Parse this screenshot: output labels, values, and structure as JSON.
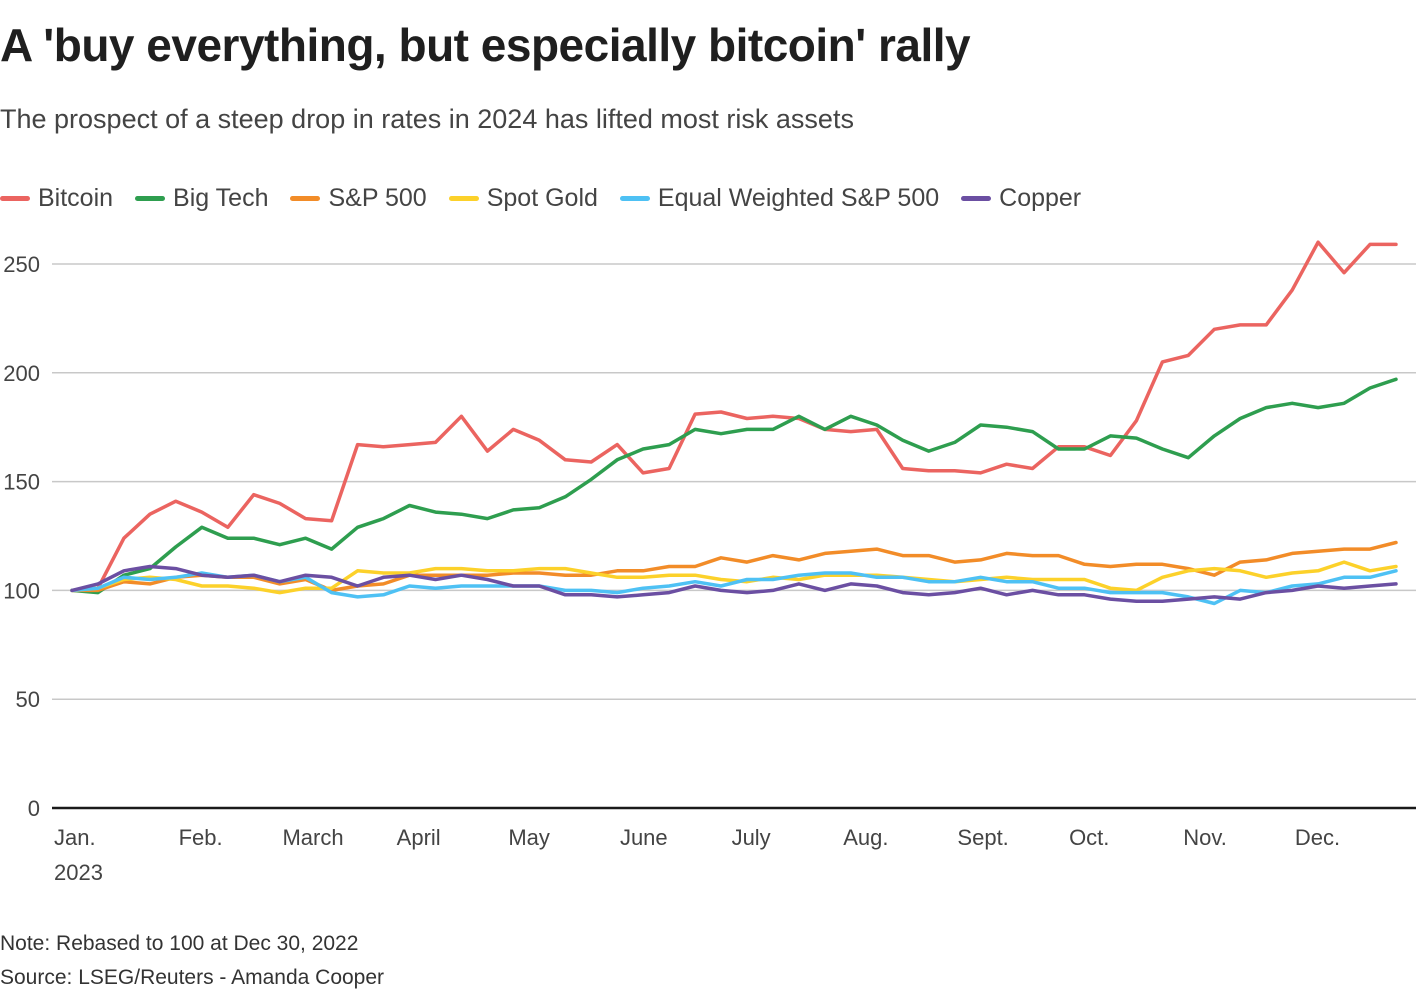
{
  "header": {
    "title": "A 'buy everything, but especially bitcoin' rally",
    "subtitle": "The prospect of a steep drop in rates in 2024 has lifted most risk assets"
  },
  "footer": {
    "note": "Note: Rebased to 100 at Dec 30, 2022",
    "source": "Source: LSEG/Reuters - Amanda Cooper"
  },
  "chart_data": {
    "type": "line",
    "title": "A 'buy everything, but especially bitcoin' rally",
    "subtitle": "The prospect of a steep drop in rates in 2024 has lifted most risk assets",
    "xlabel": "",
    "ylabel": "",
    "ylim": [
      0,
      260
    ],
    "yticks": [
      0,
      50,
      100,
      150,
      200,
      250
    ],
    "grid": true,
    "legend_position": "top-left",
    "frequency": "weekly, Dec 30 2022 to Dec 2023",
    "x_count": 52,
    "x_tick_labels": [
      {
        "index": 0,
        "label": "Jan.",
        "sublabel": "2023"
      },
      {
        "index": 4.8,
        "label": "Feb."
      },
      {
        "index": 8.8,
        "label": "March"
      },
      {
        "index": 13.2,
        "label": "April"
      },
      {
        "index": 17.5,
        "label": "May"
      },
      {
        "index": 21.8,
        "label": "June"
      },
      {
        "index": 26.1,
        "label": "July"
      },
      {
        "index": 30.4,
        "label": "Aug."
      },
      {
        "index": 34.8,
        "label": "Sept."
      },
      {
        "index": 39.1,
        "label": "Oct."
      },
      {
        "index": 43.5,
        "label": "Nov."
      },
      {
        "index": 47.8,
        "label": "Dec."
      }
    ],
    "series": [
      {
        "name": "Bitcoin",
        "color": "#eb6460",
        "values": [
          100,
          101,
          124,
          135,
          141,
          136,
          129,
          144,
          140,
          133,
          132,
          167,
          166,
          167,
          168,
          180,
          164,
          174,
          169,
          160,
          159,
          167,
          154,
          156,
          181,
          182,
          179,
          180,
          179,
          174,
          173,
          174,
          156,
          155,
          155,
          154,
          158,
          156,
          166,
          166,
          162,
          178,
          205,
          208,
          220,
          222,
          222,
          238,
          260,
          246,
          259,
          259
        ]
      },
      {
        "name": "Big Tech",
        "color": "#2e9e4f",
        "values": [
          100,
          99,
          107,
          110,
          120,
          129,
          124,
          124,
          121,
          124,
          119,
          129,
          133,
          139,
          136,
          135,
          133,
          137,
          138,
          143,
          151,
          160,
          165,
          167,
          174,
          172,
          174,
          174,
          180,
          174,
          180,
          176,
          169,
          164,
          168,
          176,
          175,
          173,
          165,
          165,
          171,
          170,
          165,
          161,
          171,
          179,
          184,
          186,
          184,
          186,
          193,
          197
        ]
      },
      {
        "name": "S&P 500",
        "color": "#f28c28",
        "values": [
          100,
          100,
          104,
          103,
          106,
          107,
          106,
          106,
          103,
          105,
          100,
          102,
          103,
          107,
          107,
          107,
          107,
          108,
          108,
          107,
          107,
          109,
          109,
          111,
          111,
          115,
          113,
          116,
          114,
          117,
          118,
          119,
          116,
          116,
          113,
          114,
          117,
          116,
          116,
          112,
          111,
          112,
          112,
          110,
          107,
          113,
          114,
          117,
          118,
          119,
          119,
          122
        ]
      },
      {
        "name": "Spot Gold",
        "color": "#fcd12a",
        "values": [
          100,
          101,
          105,
          106,
          105,
          102,
          102,
          101,
          99,
          101,
          101,
          109,
          108,
          108,
          110,
          110,
          109,
          109,
          110,
          110,
          108,
          106,
          106,
          107,
          107,
          105,
          104,
          106,
          105,
          107,
          107,
          107,
          106,
          105,
          104,
          105,
          106,
          105,
          105,
          105,
          101,
          100,
          106,
          109,
          110,
          109,
          106,
          108,
          109,
          113,
          109,
          111
        ]
      },
      {
        "name": "Equal Weighted S&P 500",
        "color": "#4ec1f4",
        "values": [
          100,
          101,
          106,
          105,
          106,
          108,
          106,
          107,
          104,
          106,
          99,
          97,
          98,
          102,
          101,
          102,
          102,
          102,
          102,
          100,
          100,
          99,
          101,
          102,
          104,
          102,
          105,
          105,
          107,
          108,
          108,
          106,
          106,
          104,
          104,
          106,
          104,
          104,
          101,
          101,
          99,
          99,
          99,
          97,
          94,
          100,
          99,
          102,
          103,
          106,
          106,
          109
        ]
      },
      {
        "name": "Copper",
        "color": "#6b4fa2",
        "values": [
          100,
          103,
          109,
          111,
          110,
          107,
          106,
          107,
          104,
          107,
          106,
          102,
          106,
          107,
          105,
          107,
          105,
          102,
          102,
          98,
          98,
          97,
          98,
          99,
          102,
          100,
          99,
          100,
          103,
          100,
          103,
          102,
          99,
          98,
          99,
          101,
          98,
          100,
          98,
          98,
          96,
          95,
          95,
          96,
          97,
          96,
          99,
          100,
          102,
          101,
          102,
          103
        ]
      }
    ]
  }
}
